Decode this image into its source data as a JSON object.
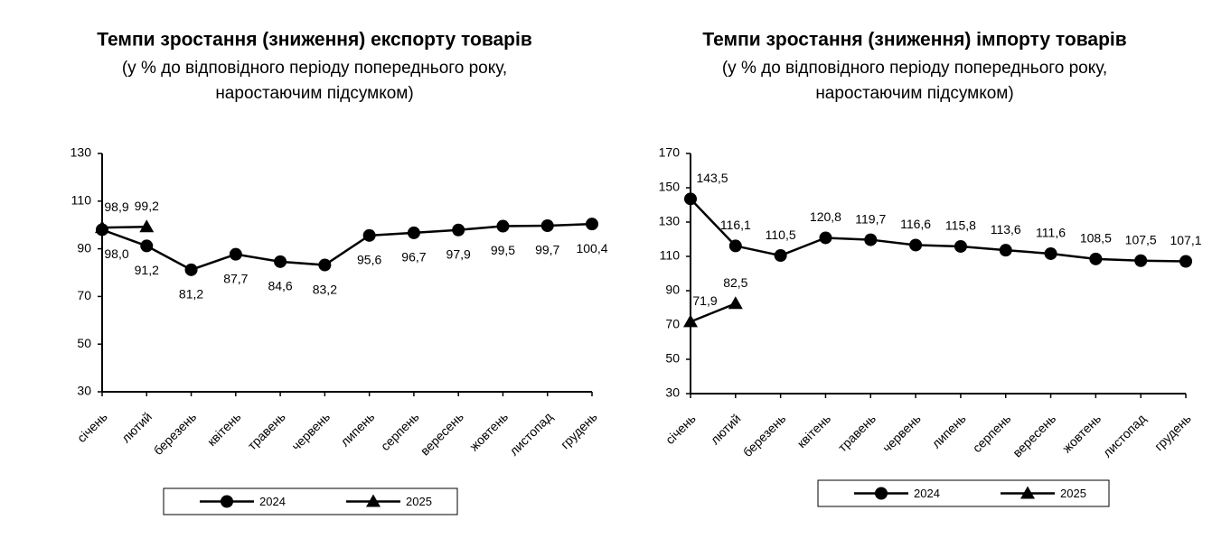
{
  "chart_data": [
    {
      "type": "line",
      "title": "Темпи зростання (зниження) експорту товарів",
      "subtitle": [
        "(у % до відповідного періоду попереднього року,",
        "наростаючим підсумком)"
      ],
      "categories": [
        "січень",
        "лютий",
        "березень",
        "квітень",
        "травень",
        "червень",
        "липень",
        "серпень",
        "вересень",
        "жовтень",
        "листопад",
        "грудень"
      ],
      "series": [
        {
          "name": "2024",
          "color": "#000000",
          "marker": "circle",
          "values": [
            98.0,
            91.2,
            81.2,
            87.7,
            84.6,
            83.2,
            95.6,
            96.7,
            97.9,
            99.5,
            99.7,
            100.4
          ],
          "value_labels": [
            "98,0",
            "91,2",
            "81,2",
            "87,7",
            "84,6",
            "83,2",
            "95,6",
            "96,7",
            "97,9",
            "99,5",
            "99,7",
            "100,4"
          ]
        },
        {
          "name": "2025",
          "color": "#000000",
          "marker": "triangle",
          "values": [
            98.9,
            99.2,
            null,
            null,
            null,
            null,
            null,
            null,
            null,
            null,
            null,
            null
          ],
          "value_labels": [
            "98,9",
            "99,2",
            null,
            null,
            null,
            null,
            null,
            null,
            null,
            null,
            null,
            null
          ]
        }
      ],
      "ylim": [
        30,
        130
      ],
      "yticks": [
        30,
        50,
        70,
        90,
        110,
        130
      ],
      "grid": false
    },
    {
      "type": "line",
      "title": "Темпи зростання (зниження) імпорту товарів",
      "subtitle": [
        "(у % до відповідного періоду попереднього року,",
        "наростаючим підсумком)"
      ],
      "categories": [
        "січень",
        "лютий",
        "березень",
        "квітень",
        "травень",
        "червень",
        "липень",
        "серпень",
        "вересень",
        "жовтень",
        "листопад",
        "грудень"
      ],
      "series": [
        {
          "name": "2024",
          "color": "#000000",
          "marker": "circle",
          "values": [
            143.5,
            116.1,
            110.5,
            120.8,
            119.7,
            116.6,
            115.8,
            113.6,
            111.6,
            108.5,
            107.5,
            107.1
          ],
          "value_labels": [
            "143,5",
            "116,1",
            "110,5",
            "120,8",
            "119,7",
            "116,6",
            "115,8",
            "113,6",
            "111,6",
            "108,5",
            "107,5",
            "107,1"
          ]
        },
        {
          "name": "2025",
          "color": "#000000",
          "marker": "triangle",
          "values": [
            71.9,
            82.5,
            null,
            null,
            null,
            null,
            null,
            null,
            null,
            null,
            null,
            null
          ],
          "value_labels": [
            "71,9",
            "82,5",
            null,
            null,
            null,
            null,
            null,
            null,
            null,
            null,
            null,
            null
          ]
        }
      ],
      "ylim": [
        30,
        170
      ],
      "yticks": [
        30,
        50,
        70,
        90,
        110,
        130,
        150,
        170
      ],
      "grid": false
    }
  ]
}
